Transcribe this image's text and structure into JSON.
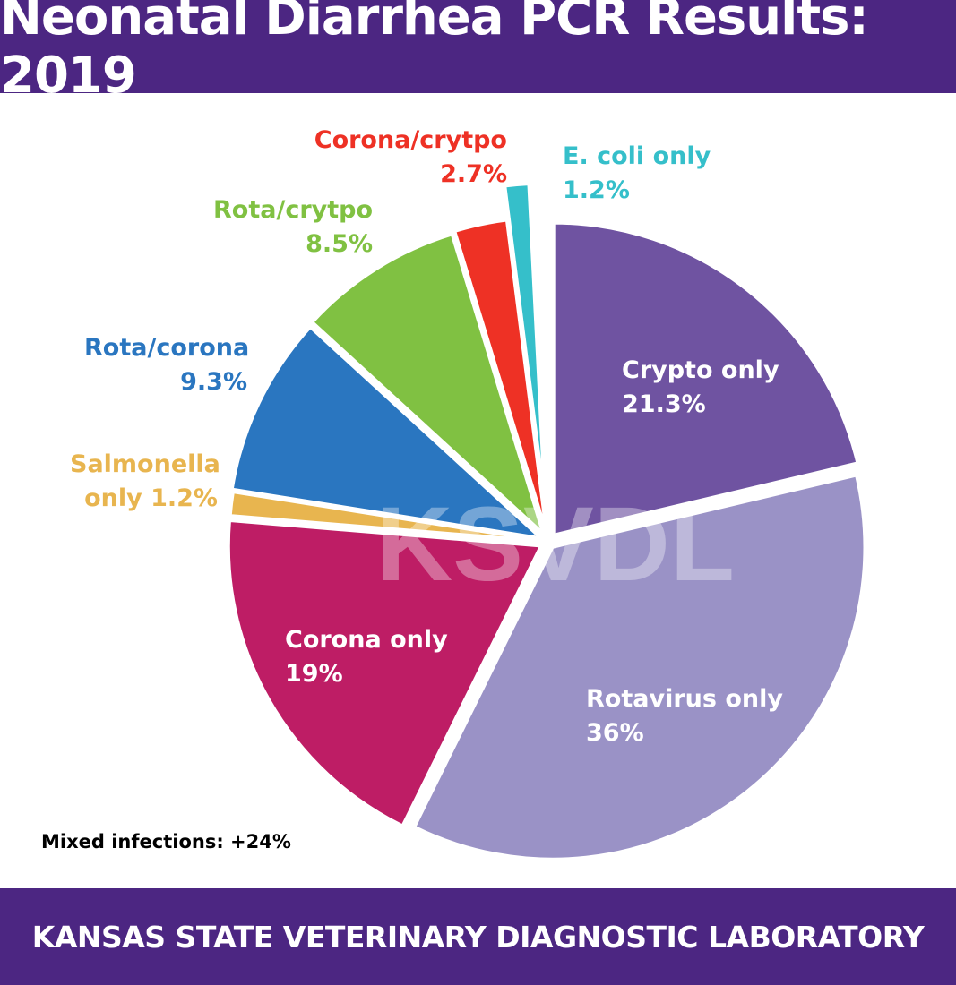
{
  "header": {
    "title": "Neonatal Diarrhea PCR Results: 2019"
  },
  "footer": {
    "text": "KANSAS STATE VETERINARY DIAGNOSTIC LABORATORY"
  },
  "note": "Mixed infections: +24%",
  "watermark": "KSVDL",
  "colors": {
    "header": "#4c2682"
  },
  "chart_data": {
    "type": "pie",
    "title": "Neonatal Diarrhea PCR Results: 2019",
    "start": "top",
    "direction": "clockwise",
    "exploded": true,
    "slices": [
      {
        "name": "Crypto only",
        "value": 21.3,
        "label": "21.3%",
        "color": "#6f53a1"
      },
      {
        "name": "Rotavirus only",
        "value": 36,
        "label": "36%",
        "color": "#9a92c6"
      },
      {
        "name": "Corona only",
        "value": 19,
        "label": "19%",
        "color": "#be1d65"
      },
      {
        "name": "Salmonella only",
        "value": 1.2,
        "label": "only 1.2%",
        "label_top": "Salmonella",
        "color": "#e8b54f"
      },
      {
        "name": "Rota/corona",
        "value": 9.3,
        "label": "9.3%",
        "color": "#2a76c0"
      },
      {
        "name": "Rota/crytpo",
        "value": 8.5,
        "label": "8.5%",
        "color": "#80c142"
      },
      {
        "name": "Corona/crytpo",
        "value": 2.7,
        "label": "2.7%",
        "color": "#ee3125"
      },
      {
        "name": "E. coli only",
        "value": 1.2,
        "label": "1.2%",
        "color": "#35bfca"
      }
    ]
  }
}
